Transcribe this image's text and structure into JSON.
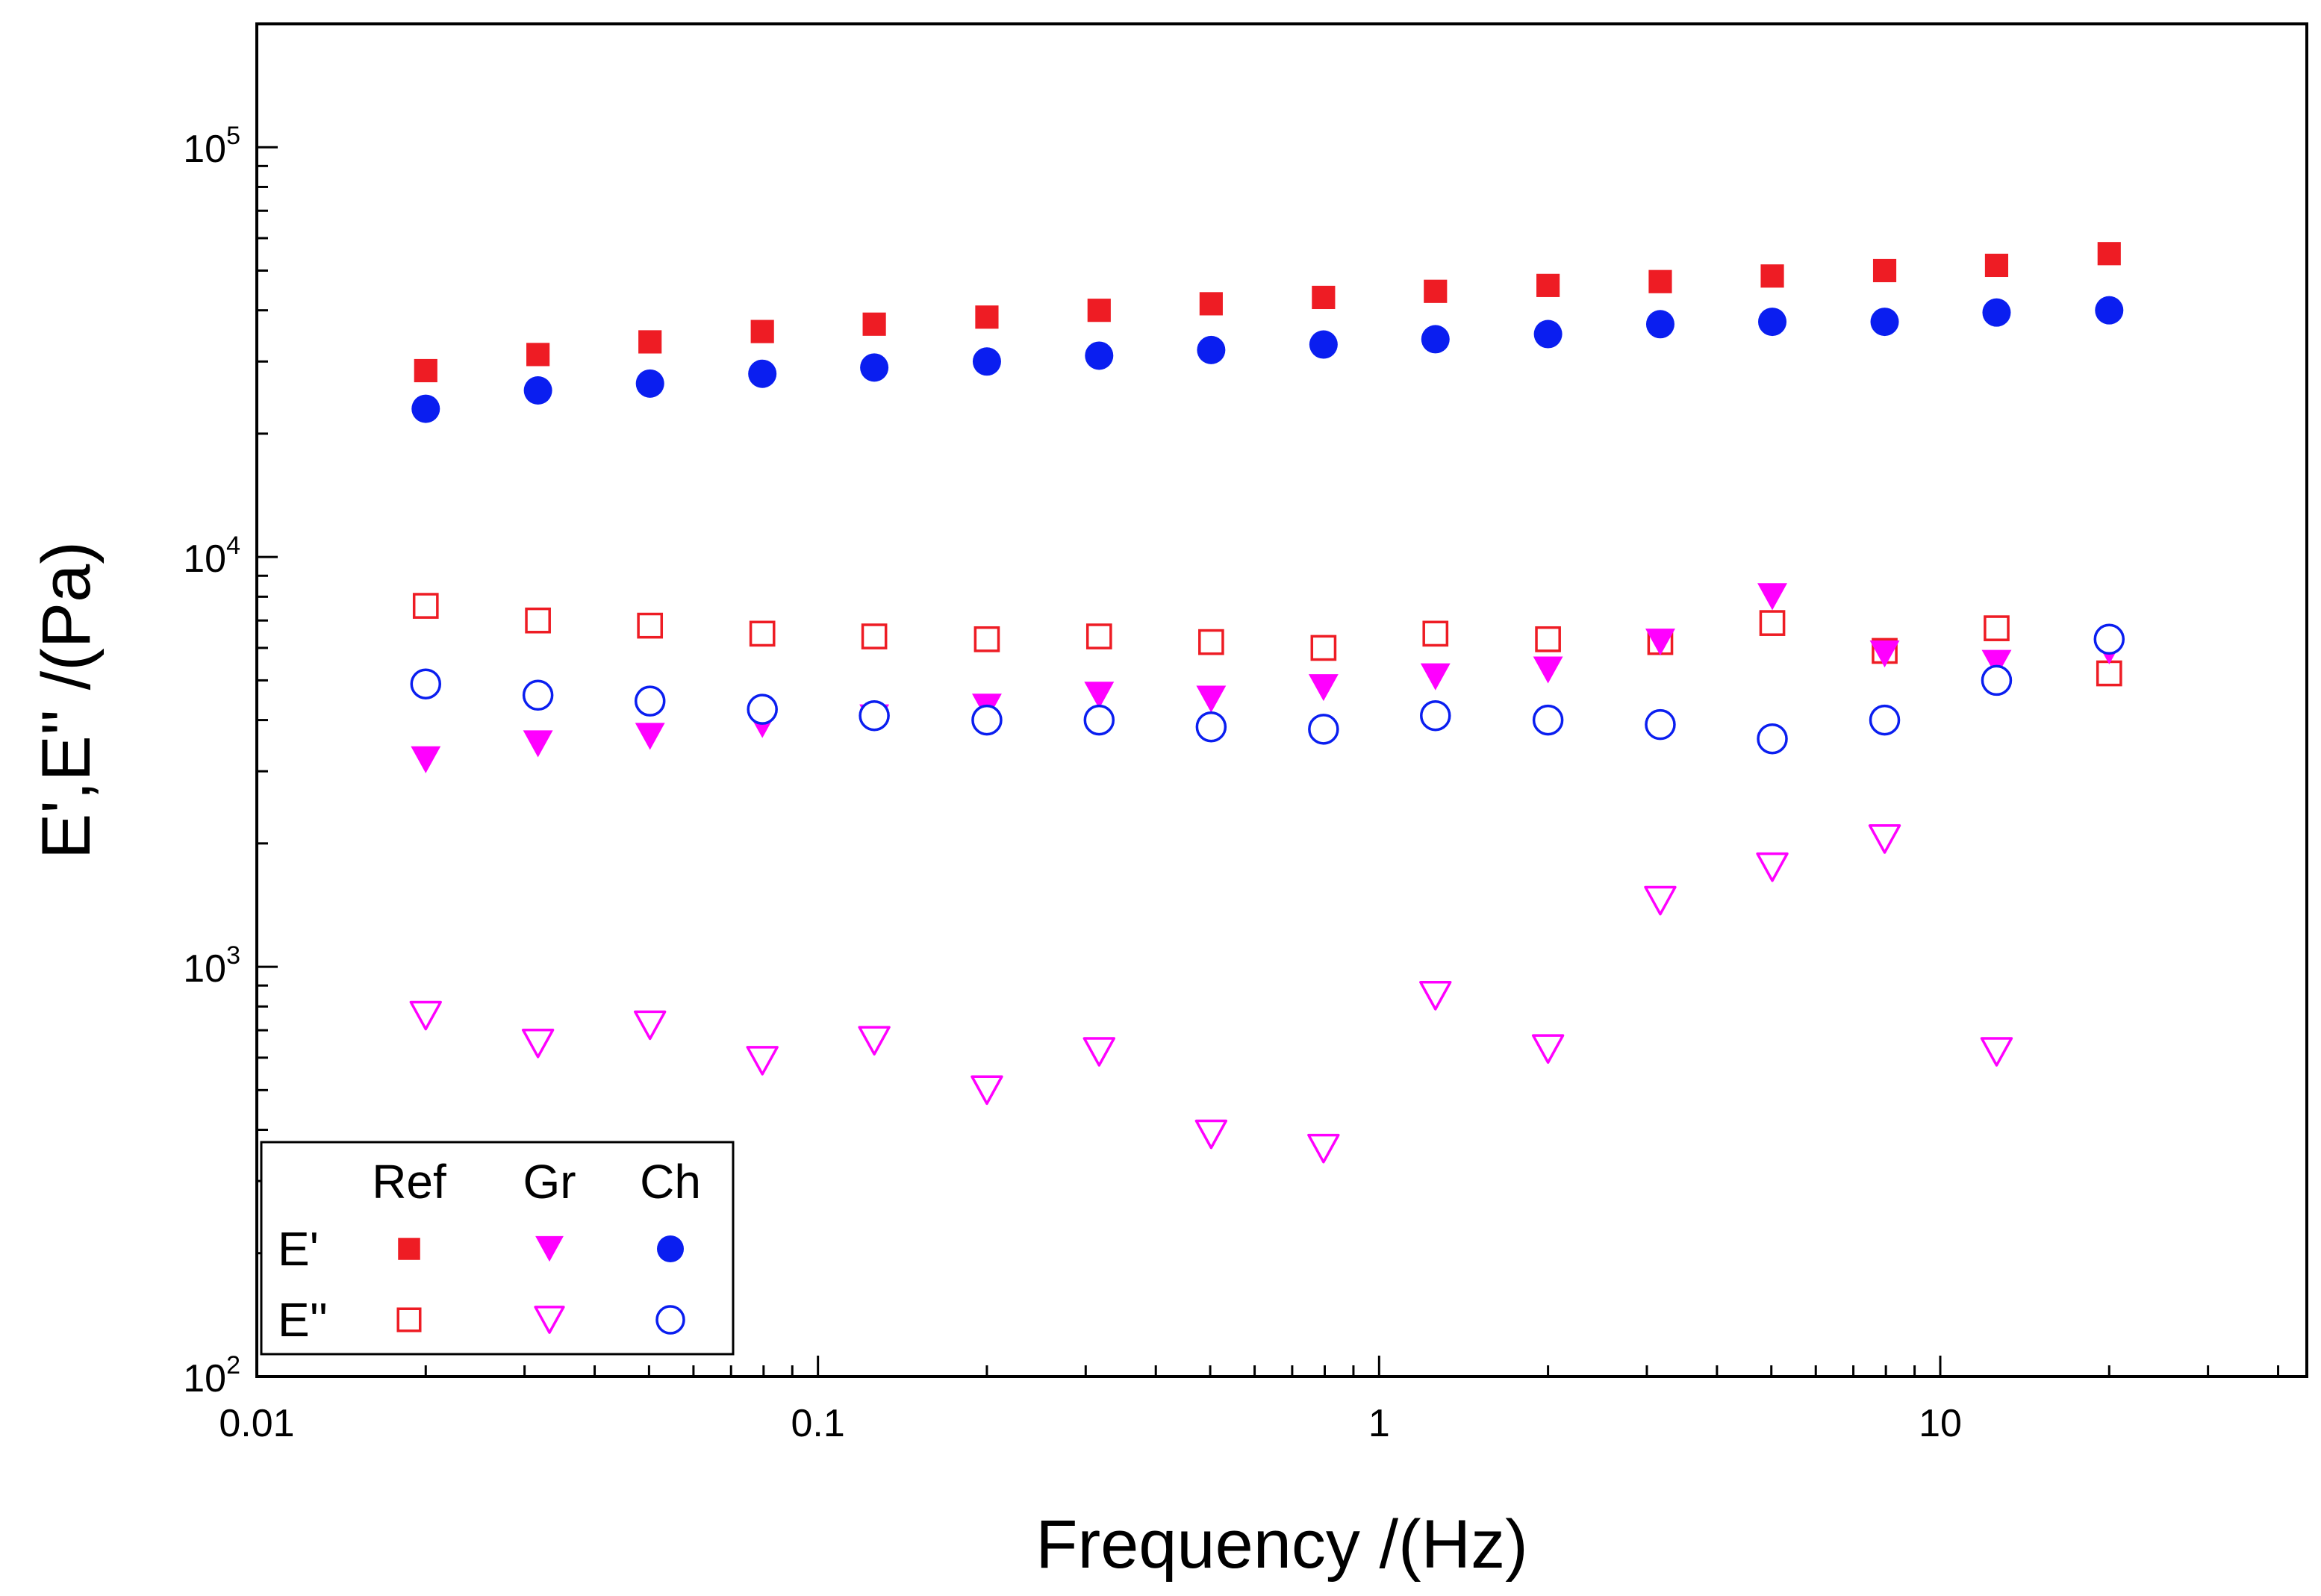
{
  "chart_data": {
    "type": "scatter",
    "title": "",
    "xlabel": "Frequency /(Hz)",
    "ylabel": "E',E'' /(Pa)",
    "xscale": "log",
    "yscale": "log",
    "xlim": [
      0.01,
      45
    ],
    "ylim": [
      100,
      200000
    ],
    "x_ticks": [
      {
        "value": 0.01,
        "label": "0.01"
      },
      {
        "value": 0.1,
        "label": "0.1"
      },
      {
        "value": 1,
        "label": "1"
      },
      {
        "value": 10,
        "label": "10"
      }
    ],
    "y_ticks": [
      {
        "value": 100,
        "base": "10",
        "exp": "2"
      },
      {
        "value": 1000,
        "base": "10",
        "exp": "3"
      },
      {
        "value": 10000,
        "base": "10",
        "exp": "4"
      },
      {
        "value": 100000,
        "base": "10",
        "exp": "5"
      }
    ],
    "legend": {
      "position": "bottom-left",
      "columns": [
        "Ref",
        "Gr",
        "Ch"
      ],
      "rows": [
        "E'",
        "E''"
      ]
    },
    "series": [
      {
        "name": "Ref E'",
        "sample": "Ref",
        "modulus": "E'",
        "marker": "square",
        "filled": true,
        "color": "#ee1c24",
        "x": [
          0.02,
          0.0317,
          0.0502,
          0.0796,
          0.126,
          0.2,
          0.317,
          0.502,
          0.796,
          1.26,
          2.0,
          3.17,
          5.02,
          7.96,
          12.6,
          20.0
        ],
        "values": [
          28500,
          31200,
          33500,
          35500,
          37000,
          38500,
          40000,
          41500,
          43000,
          44500,
          46000,
          47000,
          48500,
          50000,
          51500,
          55000
        ]
      },
      {
        "name": "Ch E'",
        "sample": "Ch",
        "modulus": "E'",
        "marker": "circle",
        "filled": true,
        "color": "#0a1ef0",
        "x": [
          0.02,
          0.0317,
          0.0502,
          0.0796,
          0.126,
          0.2,
          0.317,
          0.502,
          0.796,
          1.26,
          2.0,
          3.17,
          5.02,
          7.96,
          12.6,
          20.0
        ],
        "values": [
          23000,
          25500,
          26500,
          28000,
          29000,
          30000,
          31000,
          32000,
          33000,
          34000,
          35000,
          37000,
          37500,
          37500,
          39500,
          40000
        ]
      },
      {
        "name": "Ref E''",
        "sample": "Ref",
        "modulus": "E''",
        "marker": "square",
        "filled": false,
        "color": "#ee1c24",
        "x": [
          0.02,
          0.0317,
          0.0502,
          0.0796,
          0.126,
          0.2,
          0.317,
          0.502,
          0.796,
          1.26,
          2.0,
          3.17,
          5.02,
          7.96,
          12.6,
          20.0
        ],
        "values": [
          7600,
          7000,
          6800,
          6500,
          6400,
          6300,
          6400,
          6200,
          6000,
          6500,
          6300,
          6200,
          6900,
          5900,
          6700,
          5200
        ]
      },
      {
        "name": "Gr E'",
        "sample": "Gr",
        "modulus": "E'",
        "marker": "triangle-down",
        "filled": true,
        "color": "#ff00ff",
        "x": [
          0.02,
          0.0317,
          0.0502,
          0.0796,
          0.126,
          0.2,
          0.317,
          0.502,
          0.796,
          1.26,
          2.0,
          3.17,
          5.02,
          7.96,
          12.6,
          20.0
        ],
        "values": [
          3200,
          3500,
          3650,
          3900,
          4050,
          4300,
          4600,
          4500,
          4800,
          5100,
          5300,
          6200,
          8000,
          5800,
          5500,
          5900
        ]
      },
      {
        "name": "Ch E''",
        "sample": "Ch",
        "modulus": "E''",
        "marker": "circle",
        "filled": false,
        "color": "#0a1ef0",
        "x": [
          0.02,
          0.0317,
          0.0502,
          0.0796,
          0.126,
          0.2,
          0.317,
          0.502,
          0.796,
          1.26,
          2.0,
          3.17,
          5.02,
          7.96,
          12.6,
          20.0
        ],
        "values": [
          4900,
          4600,
          4450,
          4250,
          4100,
          4000,
          4000,
          3850,
          3800,
          4100,
          4000,
          3900,
          3600,
          4000,
          5000,
          6300
        ]
      },
      {
        "name": "Gr E''",
        "sample": "Gr",
        "modulus": "E''",
        "marker": "triangle-down",
        "filled": false,
        "color": "#ff00ff",
        "x": [
          0.02,
          0.0317,
          0.0502,
          0.0796,
          0.126,
          0.2,
          0.317,
          0.502,
          0.796,
          1.26,
          2.0,
          3.17,
          5.02,
          7.96,
          12.6
        ],
        "values": [
          760,
          650,
          720,
          590,
          660,
          500,
          620,
          390,
          360,
          850,
          630,
          1450,
          1750,
          2050,
          620
        ]
      }
    ]
  }
}
